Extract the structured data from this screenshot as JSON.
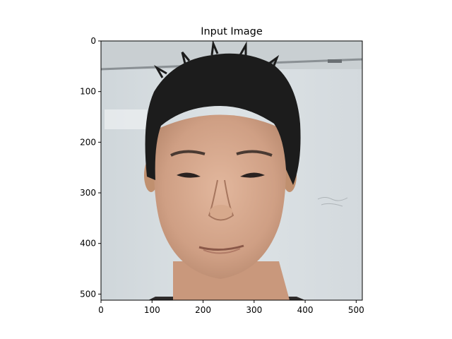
{
  "chart_data": {
    "type": "image",
    "title": "Input Image",
    "image_description": "portrait photo of a man",
    "image_shape": [
      512,
      512
    ],
    "xlim": [
      0,
      512
    ],
    "ylim": [
      512,
      0
    ],
    "x_ticks": [
      0,
      100,
      200,
      300,
      400,
      500
    ],
    "y_ticks": [
      0,
      100,
      200,
      300,
      400,
      500
    ],
    "x_tick_labels": [
      "0",
      "100",
      "200",
      "300",
      "400",
      "500"
    ],
    "y_tick_labels": [
      "0",
      "100",
      "200",
      "300",
      "400",
      "500"
    ],
    "grid": false,
    "colors": {
      "wall": "#d9dfe3",
      "hair": "#1c1c1c",
      "skin": "#d4a78c",
      "skin_shadow": "#b98a6f",
      "lips": "#a8705e"
    }
  }
}
